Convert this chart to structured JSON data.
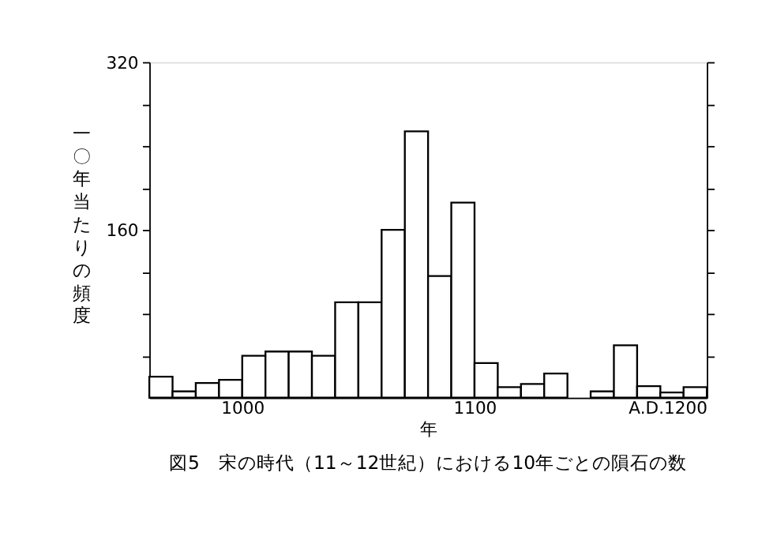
{
  "chart_data": {
    "type": "histogram",
    "title": "図5　宋の時代（11～12世紀）における10年ごとの隕石の数",
    "xlabel": "年",
    "ylabel": "一〇年当たりの頻度",
    "bins": [
      960,
      970,
      980,
      990,
      1000,
      1010,
      1020,
      1030,
      1040,
      1050,
      1060,
      1070,
      1080,
      1090,
      1100,
      1110,
      1120,
      1130,
      1140,
      1150,
      1160,
      1170,
      1180,
      1190,
      1200
    ],
    "values": [
      20,
      6,
      14,
      17,
      40,
      44,
      44,
      40,
      91,
      91,
      160,
      254,
      116,
      186,
      33,
      10,
      13,
      23,
      0,
      6,
      50,
      11,
      5,
      10
    ],
    "color": "#ffffff",
    "xlim": [
      960,
      1200
    ],
    "xticks": [
      1000,
      1100,
      {
        "value": 1200,
        "label": "A.D.1200"
      }
    ],
    "ylim": [
      0,
      320
    ],
    "yticks": [
      {
        "value": 40,
        "label": null
      },
      {
        "value": 80,
        "label": null
      },
      {
        "value": 120,
        "label": null
      },
      160,
      {
        "value": 200,
        "label": null
      },
      {
        "value": 240,
        "label": null
      },
      {
        "value": 280,
        "label": null
      },
      320
    ]
  }
}
